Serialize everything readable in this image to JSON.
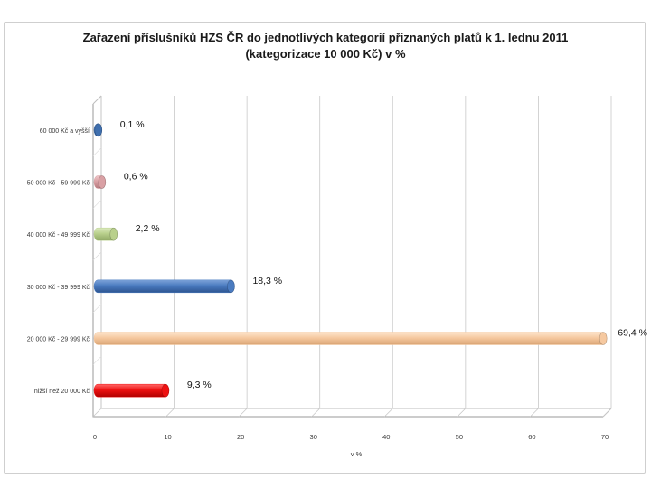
{
  "chart_data": {
    "type": "bar",
    "orientation": "horizontal",
    "title": "Zařazení příslušníků HZS ČR do jednotlivých kategorií přiznaných platů  k 1. lednu 2011",
    "subtitle": "(kategorizace 10 000 Kč)  v %",
    "xlabel": "v %",
    "ylabel": "",
    "xlim": [
      0,
      70
    ],
    "x_ticks": [
      "0",
      "10",
      "20",
      "30",
      "40",
      "50",
      "60",
      "70"
    ],
    "grid": true,
    "categories": [
      "60 000 Kč a vyšší",
      "50 000 Kč - 59 999 Kč",
      "40 000 Kč - 49 999 Kč",
      "30 000 Kč - 39 999 Kč",
      "20 000 Kč - 29 999 Kč",
      "nižší než 20 000 Kč"
    ],
    "values": [
      0.1,
      0.6,
      2.2,
      18.3,
      69.4,
      9.3
    ],
    "value_labels": [
      "0,1 %",
      "0,6 %",
      "2,2 %",
      "18,3 %",
      "69,4 %",
      "9,3 %"
    ],
    "colors": [
      "#3f6fae",
      "#d9a0a4",
      "#b9d08c",
      "#4a7bc0",
      "#f6c9a0",
      "#ee1111"
    ]
  }
}
